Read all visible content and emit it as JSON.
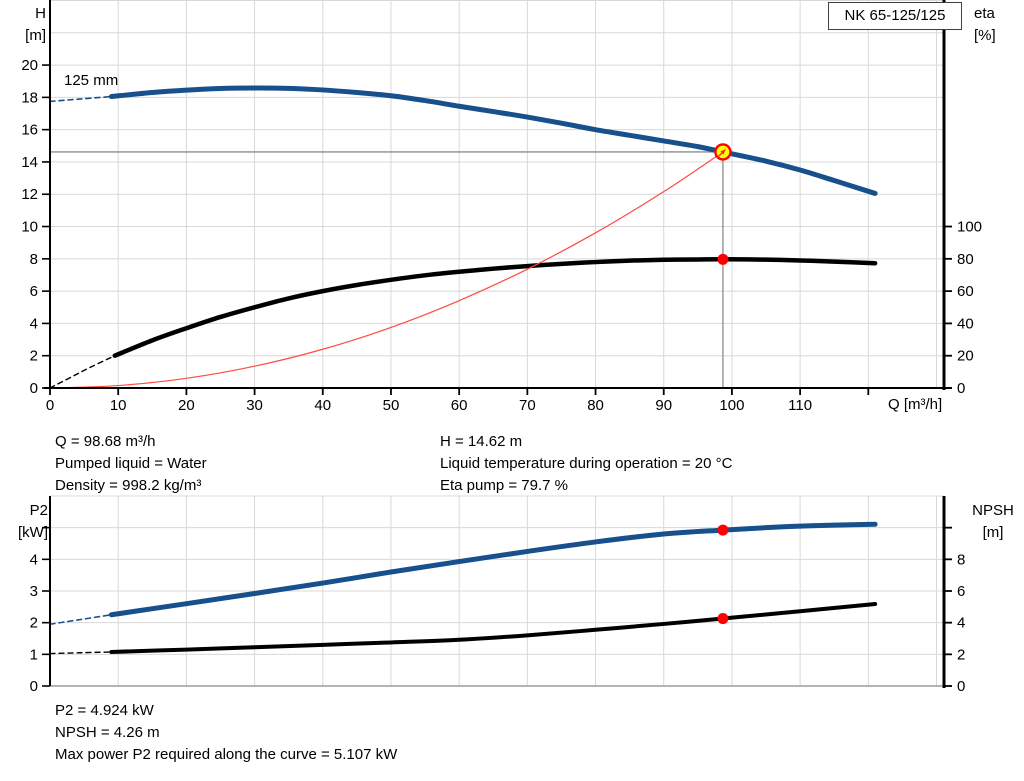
{
  "title_box": "NK 65-125/125",
  "top_chart_labels": {
    "ylabel_left_1": "H",
    "ylabel_left_2": "[m]",
    "ylabel_right_1": "eta",
    "ylabel_right_2": "[%]",
    "xlabel": "Q [m³/h]",
    "curve_label": "125 mm"
  },
  "bottom_chart_labels": {
    "ylabel_left_1": "P2",
    "ylabel_left_2": "[kW]",
    "ylabel_right_1": "NPSH",
    "ylabel_right_2": "[m]"
  },
  "info_panel": {
    "left": [
      "Q = 98.68 m³/h",
      "Pumped liquid = Water",
      "Density = 998.2 kg/m³"
    ],
    "right": [
      "H = 14.62 m",
      "Liquid temperature during operation = 20 °C",
      "Eta pump = 79.7 %"
    ]
  },
  "results_panel": [
    "P2 = 4.924 kW",
    "NPSH = 4.26 m",
    "Max power P2 required along the curve = 5.107 kW"
  ],
  "colors": {
    "curve_blue": "#17508c",
    "curve_black": "#000000",
    "system_red": "#ff4a42",
    "marker_red": "#ff0000",
    "duty_yellow": "#ffff00",
    "grid": "#d8d8d8",
    "crosshair": "#8c8c8c",
    "axis": "#000000",
    "thin_border": "#888888"
  },
  "duty_point": {
    "Q": 98.68,
    "H": 14.62,
    "eta": 79.7,
    "P2": 4.924,
    "NPSH": 4.26
  },
  "chart_data": [
    {
      "type": "line",
      "title": "NK 65-125/125",
      "xlabel": "Q [m³/h]",
      "ylabel_left": "H [m]",
      "ylabel_right": "eta [%]",
      "x": {
        "min": 0,
        "max": 131.1,
        "ticks": [
          {
            "v": 0,
            "label": "0"
          },
          {
            "v": 10,
            "label": "10"
          },
          {
            "v": 20,
            "label": "20"
          },
          {
            "v": 30,
            "label": "30"
          },
          {
            "v": 40,
            "label": "40"
          },
          {
            "v": 50,
            "label": "50"
          },
          {
            "v": 60,
            "label": "60"
          },
          {
            "v": 70,
            "label": "70"
          },
          {
            "v": 80,
            "label": "80"
          },
          {
            "v": 90,
            "label": "90"
          },
          {
            "v": 100,
            "label": "100"
          },
          {
            "v": 110,
            "label": "110"
          },
          {
            "v": 120,
            "label": ""
          }
        ],
        "grid": [
          10,
          20,
          30,
          40,
          50,
          60,
          70,
          80,
          90,
          100,
          110,
          120,
          130
        ]
      },
      "y_left": {
        "min": 0,
        "max": 24.03,
        "ticks": [
          {
            "v": 0,
            "label": "0"
          },
          {
            "v": 2,
            "label": "2"
          },
          {
            "v": 4,
            "label": "4"
          },
          {
            "v": 6,
            "label": "6"
          },
          {
            "v": 8,
            "label": "8"
          },
          {
            "v": 10,
            "label": "10"
          },
          {
            "v": 12,
            "label": "12"
          },
          {
            "v": 14,
            "label": "14"
          },
          {
            "v": 16,
            "label": "16"
          },
          {
            "v": 18,
            "label": "18"
          },
          {
            "v": 20,
            "label": "20"
          }
        ],
        "grid": [
          2,
          4,
          6,
          8,
          10,
          12,
          14,
          16,
          18,
          20,
          22,
          24
        ]
      },
      "y_right": {
        "min": 0,
        "max": 240.3,
        "ticks": [
          {
            "v": 0,
            "label": "0"
          },
          {
            "v": 20,
            "label": "20"
          },
          {
            "v": 40,
            "label": "40"
          },
          {
            "v": 60,
            "label": "60"
          },
          {
            "v": 80,
            "label": "80"
          },
          {
            "v": 100,
            "label": "100"
          }
        ]
      },
      "crosshair": {
        "q": 98.68,
        "v": 14.62
      },
      "series": [
        {
          "name": "h-curve-lead",
          "axis": "left",
          "color": "#17508c",
          "width": 1.6,
          "dash": [
            5,
            4
          ],
          "points": [
            [
              0,
              17.75
            ],
            [
              4.5,
              17.9
            ],
            [
              9,
              18.05
            ]
          ]
        },
        {
          "name": "h-curve",
          "legend": "125 mm",
          "axis": "left",
          "color": "#17508c",
          "width": 5,
          "points": [
            [
              9,
              18.05
            ],
            [
              15,
              18.3
            ],
            [
              20,
              18.45
            ],
            [
              25,
              18.55
            ],
            [
              30,
              18.58
            ],
            [
              35,
              18.56
            ],
            [
              40,
              18.46
            ],
            [
              45,
              18.3
            ],
            [
              50,
              18.1
            ],
            [
              55,
              17.8
            ],
            [
              60,
              17.45
            ],
            [
              65,
              17.12
            ],
            [
              70,
              16.78
            ],
            [
              75,
              16.4
            ],
            [
              80,
              16.0
            ],
            [
              85,
              15.65
            ],
            [
              90,
              15.3
            ],
            [
              95,
              14.95
            ],
            [
              98.68,
              14.62
            ],
            [
              105,
              14.05
            ],
            [
              110,
              13.5
            ],
            [
              115,
              12.85
            ],
            [
              121,
              12.05
            ]
          ]
        },
        {
          "name": "eta-curve-lead",
          "axis": "right",
          "color": "#000000",
          "width": 1.4,
          "dash": [
            5,
            4
          ],
          "points": [
            [
              0,
              0
            ],
            [
              3,
              6.5
            ],
            [
              6,
              13
            ],
            [
              9.5,
              20
            ]
          ]
        },
        {
          "name": "eta-curve",
          "axis": "right",
          "color": "#000000",
          "width": 4.5,
          "points": [
            [
              9.5,
              20
            ],
            [
              15,
              29.5
            ],
            [
              20,
              37
            ],
            [
              25,
              44
            ],
            [
              30,
              50
            ],
            [
              35,
              55.5
            ],
            [
              40,
              60
            ],
            [
              45,
              63.8
            ],
            [
              50,
              67
            ],
            [
              55,
              69.8
            ],
            [
              60,
              72
            ],
            [
              65,
              73.9
            ],
            [
              70,
              75.5
            ],
            [
              75,
              76.9
            ],
            [
              80,
              78
            ],
            [
              85,
              78.9
            ],
            [
              90,
              79.4
            ],
            [
              95,
              79.6
            ],
            [
              98.68,
              79.7
            ],
            [
              105,
              79.5
            ],
            [
              110,
              79
            ],
            [
              115,
              78.3
            ],
            [
              121,
              77.3
            ]
          ]
        },
        {
          "name": "system-curve",
          "axis": "left",
          "color": "#ff4a42",
          "width": 1.2,
          "points": [
            [
              0,
              0
            ],
            [
              10,
              0.15
            ],
            [
              20,
              0.6
            ],
            [
              30,
              1.35
            ],
            [
              40,
              2.4
            ],
            [
              50,
              3.75
            ],
            [
              60,
              5.41
            ],
            [
              70,
              7.36
            ],
            [
              80,
              9.61
            ],
            [
              90,
              12.16
            ],
            [
              98.68,
              14.62
            ]
          ]
        }
      ],
      "markers": [
        {
          "type": "circle",
          "name": "eta-point-marker",
          "axis": "right",
          "q": 98.68,
          "v": 79.7,
          "r": 5.5,
          "fill": "#ff0000",
          "interactable": false
        },
        {
          "type": "circle",
          "name": "duty-point-marker",
          "axis": "left",
          "q": 98.68,
          "v": 14.62,
          "r": 7.5,
          "fill": "#ffff00",
          "stroke": "#ff0000",
          "stroke_width": 2.4,
          "interactable": true
        },
        {
          "type": "arrow",
          "name": "duty-point-arrow-icon",
          "axis": "left",
          "q": 98.68,
          "v": 14.62,
          "color": "#ff2020",
          "interactable": false
        }
      ]
    },
    {
      "type": "line",
      "title": "",
      "xlabel": "",
      "ylabel_left": "P2 [kW]",
      "ylabel_right": "NPSH [m]",
      "x": {
        "min": 0,
        "max": 131.1,
        "ticks": [],
        "grid": [
          10,
          20,
          30,
          40,
          50,
          60,
          70,
          80,
          90,
          100,
          110,
          120,
          130
        ]
      },
      "y_left": {
        "min": 0,
        "max": 6,
        "ticks": [
          {
            "v": 0,
            "label": "0"
          },
          {
            "v": 1,
            "label": "1"
          },
          {
            "v": 2,
            "label": "2"
          },
          {
            "v": 3,
            "label": "3"
          },
          {
            "v": 4,
            "label": "4"
          },
          {
            "v": 5,
            "label": ""
          }
        ],
        "grid": [
          1,
          2,
          3,
          4,
          5,
          6
        ]
      },
      "y_right": {
        "min": 0,
        "max": 12,
        "ticks": [
          {
            "v": 0,
            "label": "0"
          },
          {
            "v": 2,
            "label": "2"
          },
          {
            "v": 4,
            "label": "4"
          },
          {
            "v": 6,
            "label": "6"
          },
          {
            "v": 8,
            "label": "8"
          },
          {
            "v": 10,
            "label": ""
          }
        ]
      },
      "series": [
        {
          "name": "p2-curve-lead",
          "axis": "left",
          "color": "#17508c",
          "width": 1.6,
          "dash": [
            5,
            4
          ],
          "points": [
            [
              0,
              1.95
            ],
            [
              4.5,
              2.1
            ],
            [
              9,
              2.25
            ]
          ]
        },
        {
          "name": "p2-curve",
          "axis": "left",
          "color": "#17508c",
          "width": 5,
          "points": [
            [
              9,
              2.25
            ],
            [
              20,
              2.6
            ],
            [
              30,
              2.92
            ],
            [
              40,
              3.25
            ],
            [
              50,
              3.6
            ],
            [
              60,
              3.93
            ],
            [
              70,
              4.25
            ],
            [
              80,
              4.55
            ],
            [
              90,
              4.8
            ],
            [
              98.68,
              4.924
            ],
            [
              105,
              5.0
            ],
            [
              110,
              5.05
            ],
            [
              115,
              5.08
            ],
            [
              121,
              5.107
            ]
          ]
        },
        {
          "name": "npsh-curve-lead",
          "axis": "right",
          "color": "#000000",
          "width": 1.4,
          "dash": [
            5,
            4
          ],
          "points": [
            [
              0,
              2.05
            ],
            [
              4.5,
              2.1
            ],
            [
              9,
              2.15
            ]
          ]
        },
        {
          "name": "npsh-curve",
          "axis": "right",
          "color": "#000000",
          "width": 4,
          "points": [
            [
              9,
              2.15
            ],
            [
              20,
              2.3
            ],
            [
              30,
              2.45
            ],
            [
              40,
              2.6
            ],
            [
              50,
              2.75
            ],
            [
              60,
              2.92
            ],
            [
              70,
              3.2
            ],
            [
              80,
              3.55
            ],
            [
              90,
              3.92
            ],
            [
              98.68,
              4.26
            ],
            [
              110,
              4.72
            ],
            [
              121,
              5.18
            ]
          ]
        }
      ],
      "markers": [
        {
          "type": "circle",
          "name": "p2-point-marker",
          "axis": "left",
          "q": 98.68,
          "v": 4.924,
          "r": 5.5,
          "fill": "#ff0000",
          "interactable": false
        },
        {
          "type": "circle",
          "name": "npsh-point-marker",
          "axis": "right",
          "q": 98.68,
          "v": 4.26,
          "r": 5.5,
          "fill": "#ff0000",
          "interactable": false
        }
      ]
    }
  ]
}
